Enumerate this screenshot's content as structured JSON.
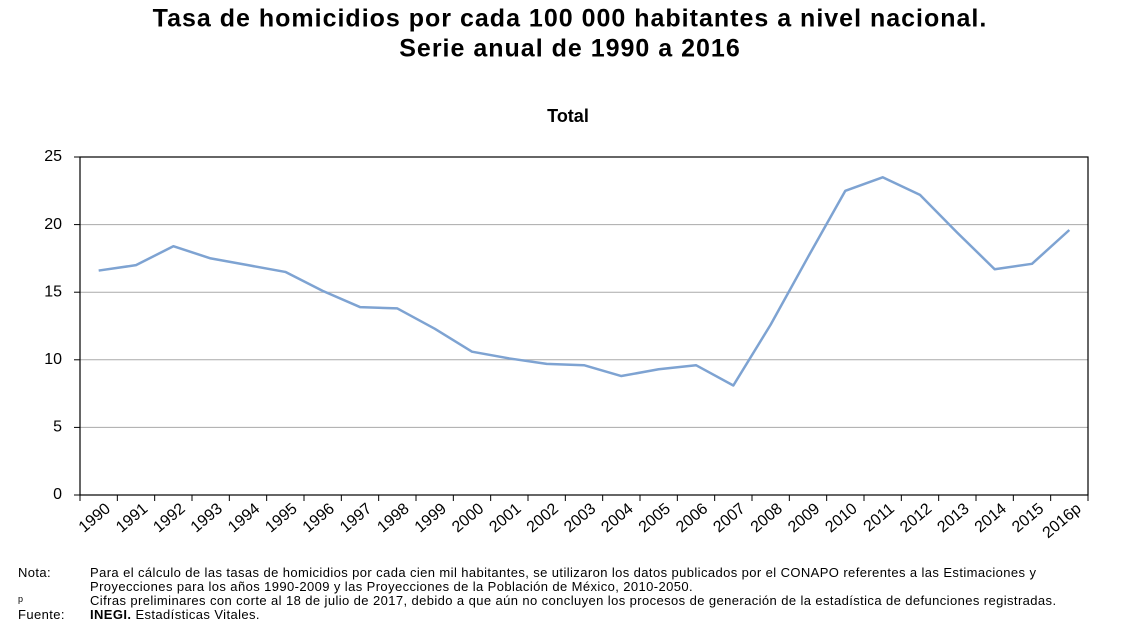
{
  "chart_data": {
    "type": "line",
    "title": "Tasa de homicidios por cada 100 000 habitantes a nivel nacional.",
    "subtitle": "Serie anual de 1990 a 2016",
    "chart_title": "Total",
    "categories": [
      "1990",
      "1991",
      "1992",
      "1993",
      "1994",
      "1995",
      "1996",
      "1997",
      "1998",
      "1999",
      "2000",
      "2001",
      "2002",
      "2003",
      "2004",
      "2005",
      "2006",
      "2007",
      "2008",
      "2009",
      "2010",
      "2011",
      "2012",
      "2013",
      "2014",
      "2015",
      "2016p"
    ],
    "series": [
      {
        "name": "Total",
        "color": "#7ea3d2",
        "values": [
          16.6,
          17.0,
          18.4,
          17.5,
          17.0,
          16.5,
          15.1,
          13.9,
          13.8,
          12.3,
          10.6,
          10.1,
          9.7,
          9.6,
          8.8,
          9.3,
          9.6,
          8.1,
          12.6,
          17.6,
          22.5,
          23.5,
          22.2,
          19.4,
          16.7,
          17.1,
          19.6
        ]
      }
    ],
    "ylim": [
      0,
      25
    ],
    "yticks": [
      0,
      5,
      10,
      15,
      20,
      25
    ],
    "grid": true
  },
  "notes": [
    {
      "label": "Nota:",
      "text": "Para el cálculo de las tasas de homicidios por cada cien mil habitantes, se utilizaron los datos publicados por el CONAPO referentes a las Estimaciones y Proyecciones para los años 1990-2009 y las Proyecciones de la Población de México, 2010-2050."
    },
    {
      "label": "p",
      "text": "Cifras preliminares con corte al 18 de julio de 2017, debido a que aún no concluyen los procesos de generación de la estadística de defunciones registradas."
    }
  ],
  "source": {
    "label": "Fuente:",
    "org": "INEGI.",
    "text": "Estadísticas Vitales."
  }
}
